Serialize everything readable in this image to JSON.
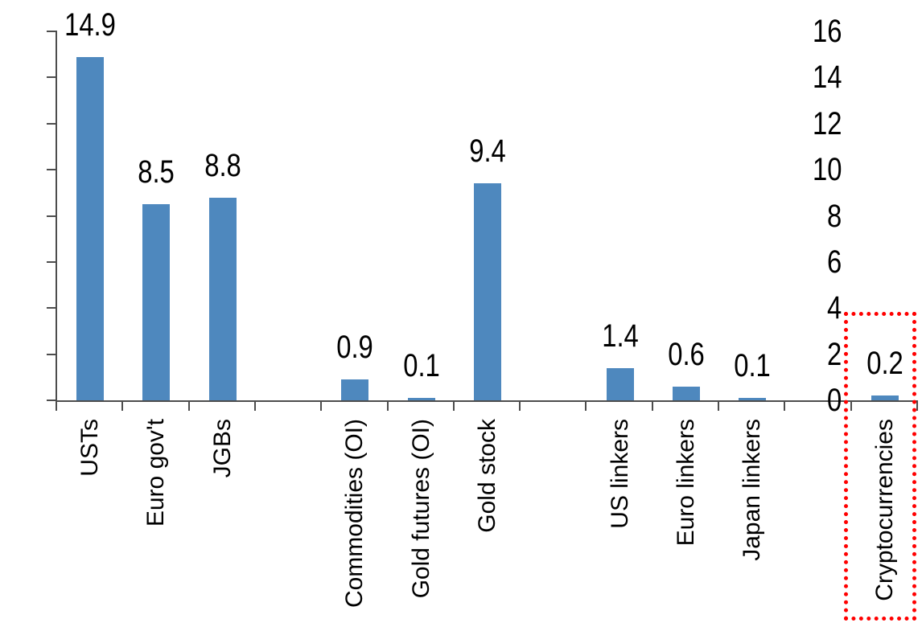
{
  "chart_data": {
    "type": "bar",
    "title": "",
    "xlabel": "",
    "ylabel": "",
    "categories": [
      "USTs",
      "Euro gov't",
      "JGBs",
      "Commodities (OI)",
      "Gold futures (OI)",
      "Gold stock",
      "US linkers",
      "Euro linkers",
      "Japan linkers",
      "Cryptocurrencies"
    ],
    "values": [
      14.9,
      8.5,
      8.8,
      0.9,
      0.1,
      9.4,
      1.4,
      0.6,
      0.1,
      0.2
    ],
    "data_labels": [
      "14.9",
      "8.5",
      "8.8",
      "0.9",
      "0.1",
      "9.4",
      "1.4",
      "0.6",
      "0.1",
      "0.2"
    ],
    "slot_indices": [
      0,
      1,
      2,
      4,
      5,
      6,
      8,
      9,
      10,
      12
    ],
    "num_slots": 13,
    "ylim": [
      0,
      16
    ],
    "yticks": [
      0,
      2,
      4,
      6,
      8,
      10,
      12,
      14,
      16
    ],
    "grid": false,
    "legend": null,
    "bar_color": "#4e88be",
    "axis_color": "#4d4d4d",
    "text_color": "#000000",
    "highlight": {
      "category": "Cryptocurrencies",
      "style": "dotted-box",
      "color": "#ff0000"
    }
  }
}
